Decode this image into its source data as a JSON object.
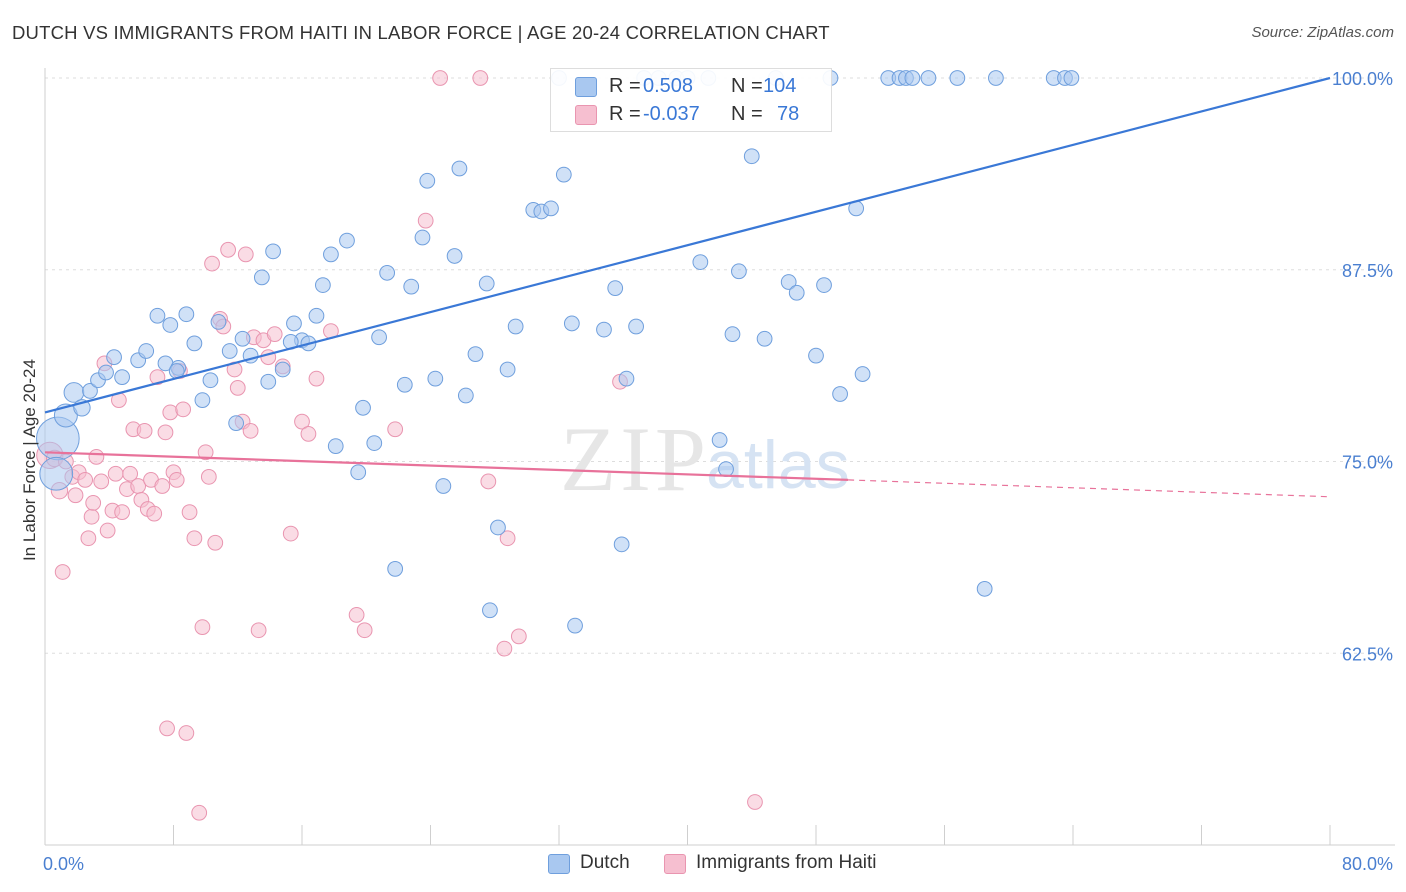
{
  "title": "DUTCH VS IMMIGRANTS FROM HAITI IN LABOR FORCE | AGE 20-24 CORRELATION CHART",
  "source": "Source: ZipAtlas.com",
  "watermark": {
    "zip": "ZIP",
    "atlas": "atlas"
  },
  "legend": {
    "rows": [
      {
        "r_label": "R =",
        "r_value": "0.508",
        "n_label": "N =",
        "n_value": "104"
      },
      {
        "r_label": "R =",
        "r_value": "-0.037",
        "n_label": "N =",
        "n_value": "78"
      }
    ]
  },
  "bottom_legend": {
    "dutch": "Dutch",
    "haiti": "Immigrants from Haiti"
  },
  "colors": {
    "dutch_fill": "#a9c8f0",
    "dutch_stroke": "#6f9fdd",
    "dutch_line": "#3a78d6",
    "haiti_fill": "#f6bfd0",
    "haiti_stroke": "#e995b0",
    "haiti_line": "#e8729a",
    "tick_label": "#4a7fd0",
    "grid": "#dddddd"
  },
  "chart_data": {
    "type": "scatter",
    "title": "DUTCH VS IMMIGRANTS FROM HAITI IN LABOR FORCE | AGE 20-24 CORRELATION CHART",
    "xlabel": "",
    "ylabel": "In Labor Force | Age 20-24",
    "xlim": [
      0,
      80
    ],
    "ylim": [
      50,
      100
    ],
    "x_tick_labels": [
      "0.0%",
      "80.0%"
    ],
    "y_ticks": [
      62.5,
      75.0,
      87.5,
      100.0
    ],
    "y_tick_labels": [
      "62.5%",
      "75.0%",
      "87.5%",
      "100.0%"
    ],
    "grid": true,
    "series": [
      {
        "name": "Dutch",
        "r": 0.508,
        "n": 104,
        "trend": {
          "x0": 0,
          "y0": 78.2,
          "x1": 80,
          "y1": 100.0
        },
        "points": [
          [
            0.8,
            76.5,
            2.6
          ],
          [
            0.7,
            74.2,
            2.0
          ],
          [
            1.8,
            79.5,
            1.2
          ],
          [
            1.3,
            78.0,
            1.4
          ],
          [
            2.3,
            78.5,
            1.0
          ],
          [
            2.8,
            79.6,
            0.9
          ],
          [
            3.3,
            80.3,
            0.9
          ],
          [
            4.3,
            81.8,
            0.9
          ],
          [
            3.8,
            80.8,
            0.9
          ],
          [
            4.8,
            80.5,
            0.9
          ],
          [
            5.8,
            81.6,
            0.9
          ],
          [
            6.3,
            82.2,
            0.9
          ],
          [
            7.0,
            84.5,
            0.9
          ],
          [
            7.5,
            81.4,
            0.9
          ],
          [
            7.8,
            83.9,
            0.9
          ],
          [
            8.3,
            81.1,
            0.9
          ],
          [
            8.8,
            84.6,
            0.9
          ],
          [
            9.3,
            82.7,
            0.9
          ],
          [
            9.8,
            79.0,
            0.9
          ],
          [
            10.3,
            80.3,
            0.9
          ],
          [
            10.8,
            84.1,
            0.9
          ],
          [
            11.5,
            82.2,
            0.9
          ],
          [
            11.9,
            77.5,
            0.9
          ],
          [
            12.3,
            83.0,
            0.9
          ],
          [
            12.8,
            81.9,
            0.9
          ],
          [
            13.5,
            87.0,
            0.9
          ],
          [
            13.9,
            80.2,
            0.9
          ],
          [
            14.2,
            88.7,
            0.9
          ],
          [
            14.8,
            81.0,
            0.9
          ],
          [
            15.5,
            84.0,
            0.9
          ],
          [
            16.0,
            82.9,
            0.9
          ],
          [
            16.4,
            82.7,
            0.9
          ],
          [
            16.9,
            84.5,
            0.9
          ],
          [
            17.3,
            86.5,
            0.9
          ],
          [
            17.8,
            88.5,
            0.9
          ],
          [
            18.1,
            76.0,
            0.9
          ],
          [
            18.8,
            89.4,
            0.9
          ],
          [
            19.5,
            74.3,
            0.9
          ],
          [
            19.8,
            78.5,
            0.9
          ],
          [
            20.5,
            76.2,
            0.9
          ],
          [
            20.8,
            83.1,
            0.9
          ],
          [
            21.3,
            87.3,
            0.9
          ],
          [
            21.8,
            68.0,
            0.9
          ],
          [
            22.4,
            80.0,
            0.9
          ],
          [
            22.8,
            86.4,
            0.9
          ],
          [
            23.5,
            89.6,
            0.9
          ],
          [
            23.8,
            93.3,
            0.9
          ],
          [
            24.3,
            80.4,
            0.9
          ],
          [
            24.8,
            73.4,
            0.9
          ],
          [
            25.5,
            88.4,
            0.9
          ],
          [
            25.8,
            94.1,
            0.9
          ],
          [
            26.2,
            79.3,
            0.9
          ],
          [
            26.8,
            82.0,
            0.9
          ],
          [
            27.5,
            86.6,
            0.9
          ],
          [
            27.7,
            65.3,
            0.9
          ],
          [
            28.2,
            70.7,
            0.9
          ],
          [
            28.8,
            81.0,
            0.9
          ],
          [
            29.3,
            83.8,
            0.9
          ],
          [
            30.4,
            91.4,
            0.9
          ],
          [
            30.9,
            91.3,
            0.9
          ],
          [
            31.5,
            91.5,
            0.9
          ],
          [
            32.3,
            93.7,
            0.9
          ],
          [
            32.0,
            100.0,
            0.9
          ],
          [
            32.8,
            84.0,
            0.9
          ],
          [
            33.0,
            64.3,
            0.9
          ],
          [
            34.8,
            83.6,
            0.9
          ],
          [
            35.5,
            86.3,
            0.9
          ],
          [
            35.9,
            69.6,
            0.9
          ],
          [
            36.2,
            80.4,
            0.9
          ],
          [
            36.8,
            83.8,
            0.9
          ],
          [
            37.3,
            100.0,
            0.9
          ],
          [
            38.2,
            100.0,
            0.9
          ],
          [
            39.3,
            100.0,
            0.9
          ],
          [
            40.0,
            100.0,
            0.9
          ],
          [
            40.8,
            88.0,
            0.9
          ],
          [
            41.3,
            100.0,
            0.9
          ],
          [
            42.0,
            76.4,
            0.9
          ],
          [
            42.4,
            74.5,
            0.9
          ],
          [
            42.8,
            83.3,
            0.9
          ],
          [
            43.2,
            87.4,
            0.9
          ],
          [
            44.0,
            94.9,
            0.9
          ],
          [
            44.8,
            83.0,
            0.9
          ],
          [
            45.5,
            100.0,
            0.9
          ],
          [
            46.3,
            86.7,
            0.9
          ],
          [
            46.8,
            86.0,
            0.9
          ],
          [
            48.0,
            81.9,
            0.9
          ],
          [
            48.5,
            86.5,
            0.9
          ],
          [
            48.9,
            100.0,
            0.9
          ],
          [
            49.5,
            79.4,
            0.9
          ],
          [
            50.5,
            91.5,
            0.9
          ],
          [
            50.9,
            80.7,
            0.9
          ],
          [
            52.5,
            100.0,
            0.9
          ],
          [
            53.2,
            100.0,
            0.9
          ],
          [
            53.6,
            100.0,
            0.9
          ],
          [
            54.0,
            100.0,
            0.9
          ],
          [
            55.0,
            100.0,
            0.9
          ],
          [
            56.8,
            100.0,
            0.9
          ],
          [
            58.5,
            66.7,
            0.9
          ],
          [
            59.2,
            100.0,
            0.9
          ],
          [
            62.8,
            100.0,
            0.9
          ],
          [
            63.5,
            100.0,
            0.9
          ],
          [
            63.9,
            100.0,
            0.9
          ],
          [
            15.3,
            82.8,
            0.9
          ],
          [
            8.2,
            80.9,
            0.9
          ]
        ]
      },
      {
        "name": "Immigrants from Haiti",
        "r": -0.037,
        "n": 78,
        "trend": {
          "x0": 0,
          "y0": 75.6,
          "x1": 50,
          "y1": 73.8,
          "dash_x1": 80,
          "dash_y1": 72.7
        },
        "points": [
          [
            0.3,
            75.4,
            1.6
          ],
          [
            0.6,
            75.2,
            1.0
          ],
          [
            0.9,
            73.1,
            1.0
          ],
          [
            1.1,
            67.8,
            0.9
          ],
          [
            1.3,
            75.0,
            0.9
          ],
          [
            1.7,
            74.0,
            0.9
          ],
          [
            1.9,
            72.8,
            0.9
          ],
          [
            2.1,
            74.3,
            0.9
          ],
          [
            2.5,
            73.8,
            0.9
          ],
          [
            2.7,
            70.0,
            0.9
          ],
          [
            2.9,
            71.4,
            0.9
          ],
          [
            3.0,
            72.3,
            0.9
          ],
          [
            3.2,
            75.3,
            0.9
          ],
          [
            3.5,
            73.7,
            0.9
          ],
          [
            3.7,
            81.4,
            0.9
          ],
          [
            3.9,
            70.5,
            0.9
          ],
          [
            4.2,
            71.8,
            0.9
          ],
          [
            4.4,
            74.2,
            0.9
          ],
          [
            4.6,
            79.0,
            0.9
          ],
          [
            4.8,
            71.7,
            0.9
          ],
          [
            5.1,
            73.2,
            0.9
          ],
          [
            5.3,
            74.2,
            0.9
          ],
          [
            5.5,
            77.1,
            0.9
          ],
          [
            5.8,
            73.4,
            0.9
          ],
          [
            6.0,
            72.5,
            0.9
          ],
          [
            6.2,
            77.0,
            0.9
          ],
          [
            6.4,
            71.9,
            0.9
          ],
          [
            6.6,
            73.8,
            0.9
          ],
          [
            6.8,
            71.6,
            0.9
          ],
          [
            7.0,
            80.5,
            0.9
          ],
          [
            7.3,
            73.4,
            0.9
          ],
          [
            7.5,
            76.9,
            0.9
          ],
          [
            7.6,
            57.6,
            0.9
          ],
          [
            7.8,
            78.2,
            0.9
          ],
          [
            8.0,
            74.3,
            0.9
          ],
          [
            8.2,
            73.8,
            0.9
          ],
          [
            8.4,
            80.9,
            0.9
          ],
          [
            8.6,
            78.4,
            0.9
          ],
          [
            8.8,
            57.3,
            0.9
          ],
          [
            9.0,
            71.7,
            0.9
          ],
          [
            9.3,
            70.0,
            0.9
          ],
          [
            9.6,
            52.1,
            0.9
          ],
          [
            9.8,
            64.2,
            0.9
          ],
          [
            10.0,
            75.6,
            0.9
          ],
          [
            10.2,
            74.0,
            0.9
          ],
          [
            10.4,
            87.9,
            0.9
          ],
          [
            10.6,
            69.7,
            0.9
          ],
          [
            10.9,
            84.3,
            0.9
          ],
          [
            11.1,
            83.8,
            0.9
          ],
          [
            11.4,
            88.8,
            0.9
          ],
          [
            11.8,
            81.0,
            0.9
          ],
          [
            12.0,
            79.8,
            0.9
          ],
          [
            12.3,
            77.6,
            0.9
          ],
          [
            12.5,
            88.5,
            0.9
          ],
          [
            12.8,
            77.0,
            0.9
          ],
          [
            13.0,
            83.1,
            0.9
          ],
          [
            13.3,
            64.0,
            0.9
          ],
          [
            13.6,
            82.9,
            0.9
          ],
          [
            13.9,
            81.8,
            0.9
          ],
          [
            14.3,
            83.3,
            0.9
          ],
          [
            14.8,
            81.2,
            0.9
          ],
          [
            15.3,
            70.3,
            0.9
          ],
          [
            16.0,
            77.6,
            0.9
          ],
          [
            16.4,
            76.8,
            0.9
          ],
          [
            16.9,
            80.4,
            0.9
          ],
          [
            17.8,
            83.5,
            0.9
          ],
          [
            19.4,
            65.0,
            0.9
          ],
          [
            19.9,
            64.0,
            0.9
          ],
          [
            21.8,
            77.1,
            0.9
          ],
          [
            23.7,
            90.7,
            0.9
          ],
          [
            24.6,
            100.0,
            0.9
          ],
          [
            27.1,
            100.0,
            0.9
          ],
          [
            28.6,
            62.8,
            0.9
          ],
          [
            27.6,
            73.7,
            0.9
          ],
          [
            28.8,
            70.0,
            0.9
          ],
          [
            35.8,
            80.2,
            0.9
          ],
          [
            44.2,
            52.8,
            0.9
          ],
          [
            29.5,
            63.6,
            0.9
          ]
        ]
      }
    ]
  }
}
